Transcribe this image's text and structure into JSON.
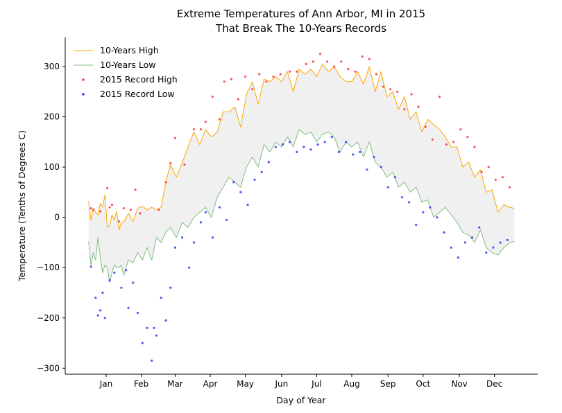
{
  "chart_data": {
    "type": "line",
    "title_line1": "Extreme Temperatures of Ann Arbor, MI in 2015",
    "title_line2": "That Break The 10-Years Records",
    "xlabel": "Day of Year",
    "ylabel": "Temperature (Tenths of Degrees C)",
    "xlim": [
      -20,
      384
    ],
    "ylim": [
      -312,
      358
    ],
    "month_ticks": [
      {
        "label": "Jan",
        "day": 15
      },
      {
        "label": "Feb",
        "day": 45
      },
      {
        "label": "Mar",
        "day": 74
      },
      {
        "label": "Apr",
        "day": 104
      },
      {
        "label": "May",
        "day": 134
      },
      {
        "label": "Jun",
        "day": 165
      },
      {
        "label": "Jul",
        "day": 195
      },
      {
        "label": "Aug",
        "day": 225
      },
      {
        "label": "Sep",
        "day": 256
      },
      {
        "label": "Oct",
        "day": 286
      },
      {
        "label": "Nov",
        "day": 317
      },
      {
        "label": "Dec",
        "day": 347
      }
    ],
    "y_ticks": [
      -300,
      -200,
      -100,
      0,
      100,
      200,
      300
    ],
    "legend_position": "upper-left",
    "band_color": "#f0f0f0",
    "series": [
      {
        "name": "10-Years High",
        "kind": "line",
        "color": "#ffa500",
        "x": [
          0,
          2,
          4,
          6,
          8,
          10,
          12,
          14,
          16,
          18,
          20,
          22,
          24,
          26,
          28,
          30,
          34,
          38,
          42,
          46,
          50,
          54,
          58,
          62,
          66,
          70,
          75,
          80,
          85,
          90,
          95,
          100,
          105,
          110,
          115,
          120,
          125,
          130,
          135,
          140,
          145,
          150,
          155,
          160,
          165,
          170,
          175,
          180,
          185,
          190,
          195,
          200,
          205,
          210,
          215,
          220,
          225,
          230,
          235,
          240,
          245,
          250,
          255,
          260,
          265,
          270,
          275,
          280,
          285,
          290,
          295,
          300,
          305,
          310,
          315,
          320,
          325,
          330,
          335,
          340,
          345,
          350,
          355,
          360,
          364
        ],
        "y": [
          32,
          -5,
          18,
          10,
          5,
          28,
          20,
          45,
          -20,
          -15,
          5,
          -5,
          12,
          -25,
          -10,
          -10,
          8,
          -8,
          18,
          22,
          15,
          20,
          15,
          20,
          70,
          105,
          80,
          108,
          140,
          170,
          145,
          175,
          160,
          170,
          210,
          210,
          220,
          180,
          245,
          270,
          225,
          275,
          270,
          280,
          270,
          290,
          250,
          295,
          285,
          295,
          280,
          305,
          290,
          300,
          280,
          270,
          270,
          290,
          265,
          300,
          250,
          290,
          240,
          250,
          215,
          240,
          195,
          210,
          170,
          195,
          185,
          175,
          160,
          140,
          140,
          100,
          110,
          80,
          95,
          50,
          55,
          10,
          25,
          20,
          18
        ]
      },
      {
        "name": "10-Years Low",
        "kind": "line",
        "color": "#7fbf7f",
        "x": [
          0,
          2,
          4,
          6,
          8,
          10,
          12,
          14,
          16,
          18,
          20,
          22,
          24,
          26,
          28,
          30,
          34,
          38,
          42,
          46,
          50,
          54,
          58,
          62,
          66,
          70,
          75,
          80,
          85,
          90,
          95,
          100,
          105,
          110,
          115,
          120,
          125,
          130,
          135,
          140,
          145,
          150,
          155,
          160,
          165,
          170,
          175,
          180,
          185,
          190,
          195,
          200,
          205,
          210,
          215,
          220,
          225,
          230,
          235,
          240,
          245,
          250,
          255,
          260,
          265,
          270,
          275,
          280,
          285,
          290,
          295,
          300,
          305,
          310,
          315,
          320,
          325,
          330,
          335,
          340,
          345,
          350,
          355,
          360,
          364
        ],
        "y": [
          -48,
          -95,
          -70,
          -85,
          -40,
          -80,
          -110,
          -95,
          -100,
          -130,
          -110,
          -95,
          -100,
          -100,
          -95,
          -115,
          -85,
          -90,
          -70,
          -85,
          -60,
          -85,
          -40,
          -50,
          -30,
          -20,
          -40,
          -10,
          -20,
          0,
          10,
          20,
          0,
          40,
          60,
          80,
          70,
          60,
          100,
          120,
          100,
          145,
          130,
          150,
          140,
          160,
          140,
          175,
          165,
          170,
          150,
          165,
          170,
          160,
          130,
          150,
          140,
          150,
          120,
          150,
          110,
          100,
          80,
          90,
          60,
          70,
          50,
          60,
          30,
          35,
          0,
          10,
          20,
          5,
          -10,
          -30,
          -35,
          -50,
          -25,
          -60,
          -70,
          -75,
          -60,
          -50,
          -48
        ]
      },
      {
        "name": "2015 Record High",
        "kind": "scatter",
        "color": "#ff3333",
        "x": [
          2,
          4,
          10,
          16,
          18,
          20,
          26,
          30,
          36,
          40,
          44,
          60,
          66,
          70,
          74,
          82,
          90,
          96,
          100,
          106,
          112,
          116,
          122,
          128,
          134,
          140,
          146,
          152,
          158,
          164,
          172,
          178,
          186,
          192,
          198,
          204,
          210,
          216,
          222,
          228,
          234,
          240,
          246,
          252,
          258,
          264,
          270,
          276,
          282,
          288,
          294,
          300,
          306,
          312,
          318,
          324,
          330,
          336,
          342,
          348,
          354,
          360
        ],
        "y": [
          18,
          15,
          12,
          58,
          20,
          25,
          -8,
          18,
          15,
          55,
          8,
          15,
          70,
          108,
          158,
          105,
          175,
          175,
          190,
          240,
          195,
          270,
          275,
          235,
          280,
          255,
          285,
          270,
          280,
          285,
          290,
          290,
          305,
          310,
          325,
          310,
          300,
          310,
          295,
          290,
          320,
          315,
          285,
          260,
          255,
          250,
          215,
          245,
          220,
          180,
          155,
          240,
          145,
          150,
          175,
          160,
          140,
          90,
          100,
          75,
          80,
          60
        ]
      },
      {
        "name": "2015 Record Low",
        "kind": "scatter",
        "color": "#3333ff",
        "x": [
          2,
          6,
          8,
          10,
          12,
          14,
          18,
          22,
          28,
          32,
          34,
          38,
          42,
          46,
          50,
          54,
          56,
          58,
          62,
          66,
          70,
          74,
          80,
          86,
          90,
          96,
          100,
          106,
          112,
          118,
          124,
          130,
          136,
          142,
          148,
          154,
          160,
          166,
          172,
          178,
          184,
          190,
          196,
          202,
          208,
          214,
          220,
          226,
          232,
          238,
          244,
          250,
          256,
          262,
          268,
          274,
          280,
          286,
          292,
          298,
          304,
          310,
          316,
          322,
          328,
          334,
          340,
          346,
          352,
          358
        ],
        "y": [
          -98,
          -160,
          -195,
          -185,
          -150,
          -200,
          -125,
          -110,
          -140,
          -105,
          -180,
          -130,
          -190,
          -250,
          -220,
          -285,
          -220,
          -235,
          -160,
          -205,
          -140,
          -60,
          -40,
          -100,
          -50,
          -10,
          10,
          -40,
          20,
          -5,
          70,
          50,
          25,
          75,
          90,
          110,
          140,
          145,
          150,
          130,
          140,
          135,
          145,
          150,
          160,
          130,
          150,
          125,
          130,
          95,
          120,
          100,
          60,
          80,
          40,
          30,
          -15,
          10,
          20,
          0,
          -30,
          -60,
          -80,
          -50,
          -40,
          -20,
          -70,
          -60,
          -50,
          -45
        ]
      }
    ]
  }
}
